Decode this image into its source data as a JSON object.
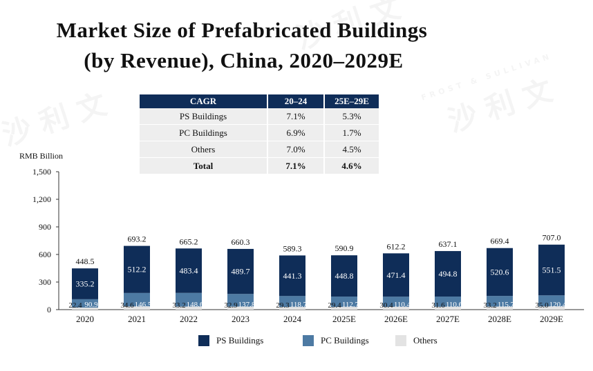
{
  "title_line1": "Market Size of Prefabricated Buildings",
  "title_line2": "(by Revenue), China, 2020–2029E",
  "cagr_table": {
    "headers": [
      "CAGR",
      "20–24",
      "25E–29E"
    ],
    "rows": [
      {
        "label": "PS Buildings",
        "a": "7.1%",
        "b": "5.3%"
      },
      {
        "label": "PC Buildings",
        "a": "6.9%",
        "b": "1.7%"
      },
      {
        "label": "Others",
        "a": "7.0%",
        "b": "4.5%"
      },
      {
        "label": "Total",
        "a": "7.1%",
        "b": "4.6%"
      }
    ]
  },
  "watermarks": [
    "沙 利 文",
    "FROST & SULLIVAN"
  ],
  "colors": {
    "ps": "#0f2d58",
    "pc": "#4d7aa3",
    "others": "#e3e3e3",
    "header": "#0f2d58"
  },
  "chart_data": {
    "type": "bar",
    "stacked": true,
    "ylabel": "RMB Billion",
    "ylim": [
      0,
      1500
    ],
    "yticks": [
      "0",
      "300",
      "600",
      "900",
      "1,200",
      "1,500"
    ],
    "ytick_values": [
      0,
      300,
      600,
      900,
      1200,
      1500
    ],
    "categories": [
      "2020",
      "2021",
      "2022",
      "2023",
      "2024",
      "2025E",
      "2026E",
      "2027E",
      "2028E",
      "2029E"
    ],
    "series": [
      {
        "name": "Others",
        "values": [
          22.4,
          34.6,
          33.2,
          32.9,
          29.3,
          29.4,
          30.4,
          31.6,
          33.2,
          35.0
        ],
        "labels": [
          "22.4",
          "34.6",
          "33.2",
          "32.9",
          "29.3",
          "29.4",
          "30.4",
          "31.6",
          "33.2",
          "35.0"
        ]
      },
      {
        "name": "PC Buildings",
        "values": [
          90.9,
          146.5,
          148.6,
          137.8,
          118.7,
          112.7,
          110.4,
          110.6,
          115.7,
          120.4
        ],
        "labels": [
          "90.9",
          "146.5",
          "148.6",
          "137.8",
          "118.7",
          "112.7",
          "110.4",
          "110.6",
          "115.7",
          "120.4"
        ]
      },
      {
        "name": "PS Buildings",
        "values": [
          335.2,
          512.2,
          483.4,
          489.7,
          441.3,
          448.8,
          471.4,
          494.8,
          520.6,
          551.5
        ],
        "labels": [
          "335.2",
          "512.2",
          "483.4",
          "489.7",
          "441.3",
          "448.8",
          "471.4",
          "494.8",
          "520.6",
          "551.5"
        ]
      }
    ],
    "totals": [
      448.5,
      693.2,
      665.2,
      660.3,
      589.3,
      590.9,
      612.2,
      637.1,
      669.4,
      707.0
    ],
    "total_labels": [
      "448.5",
      "693.2",
      "665.2",
      "660.3",
      "589.3",
      "590.9",
      "612.2",
      "637.1",
      "669.4",
      "707.0"
    ],
    "legend": [
      "PS Buildings",
      "PC Buildings",
      "Others"
    ],
    "legend_position": "bottom"
  }
}
